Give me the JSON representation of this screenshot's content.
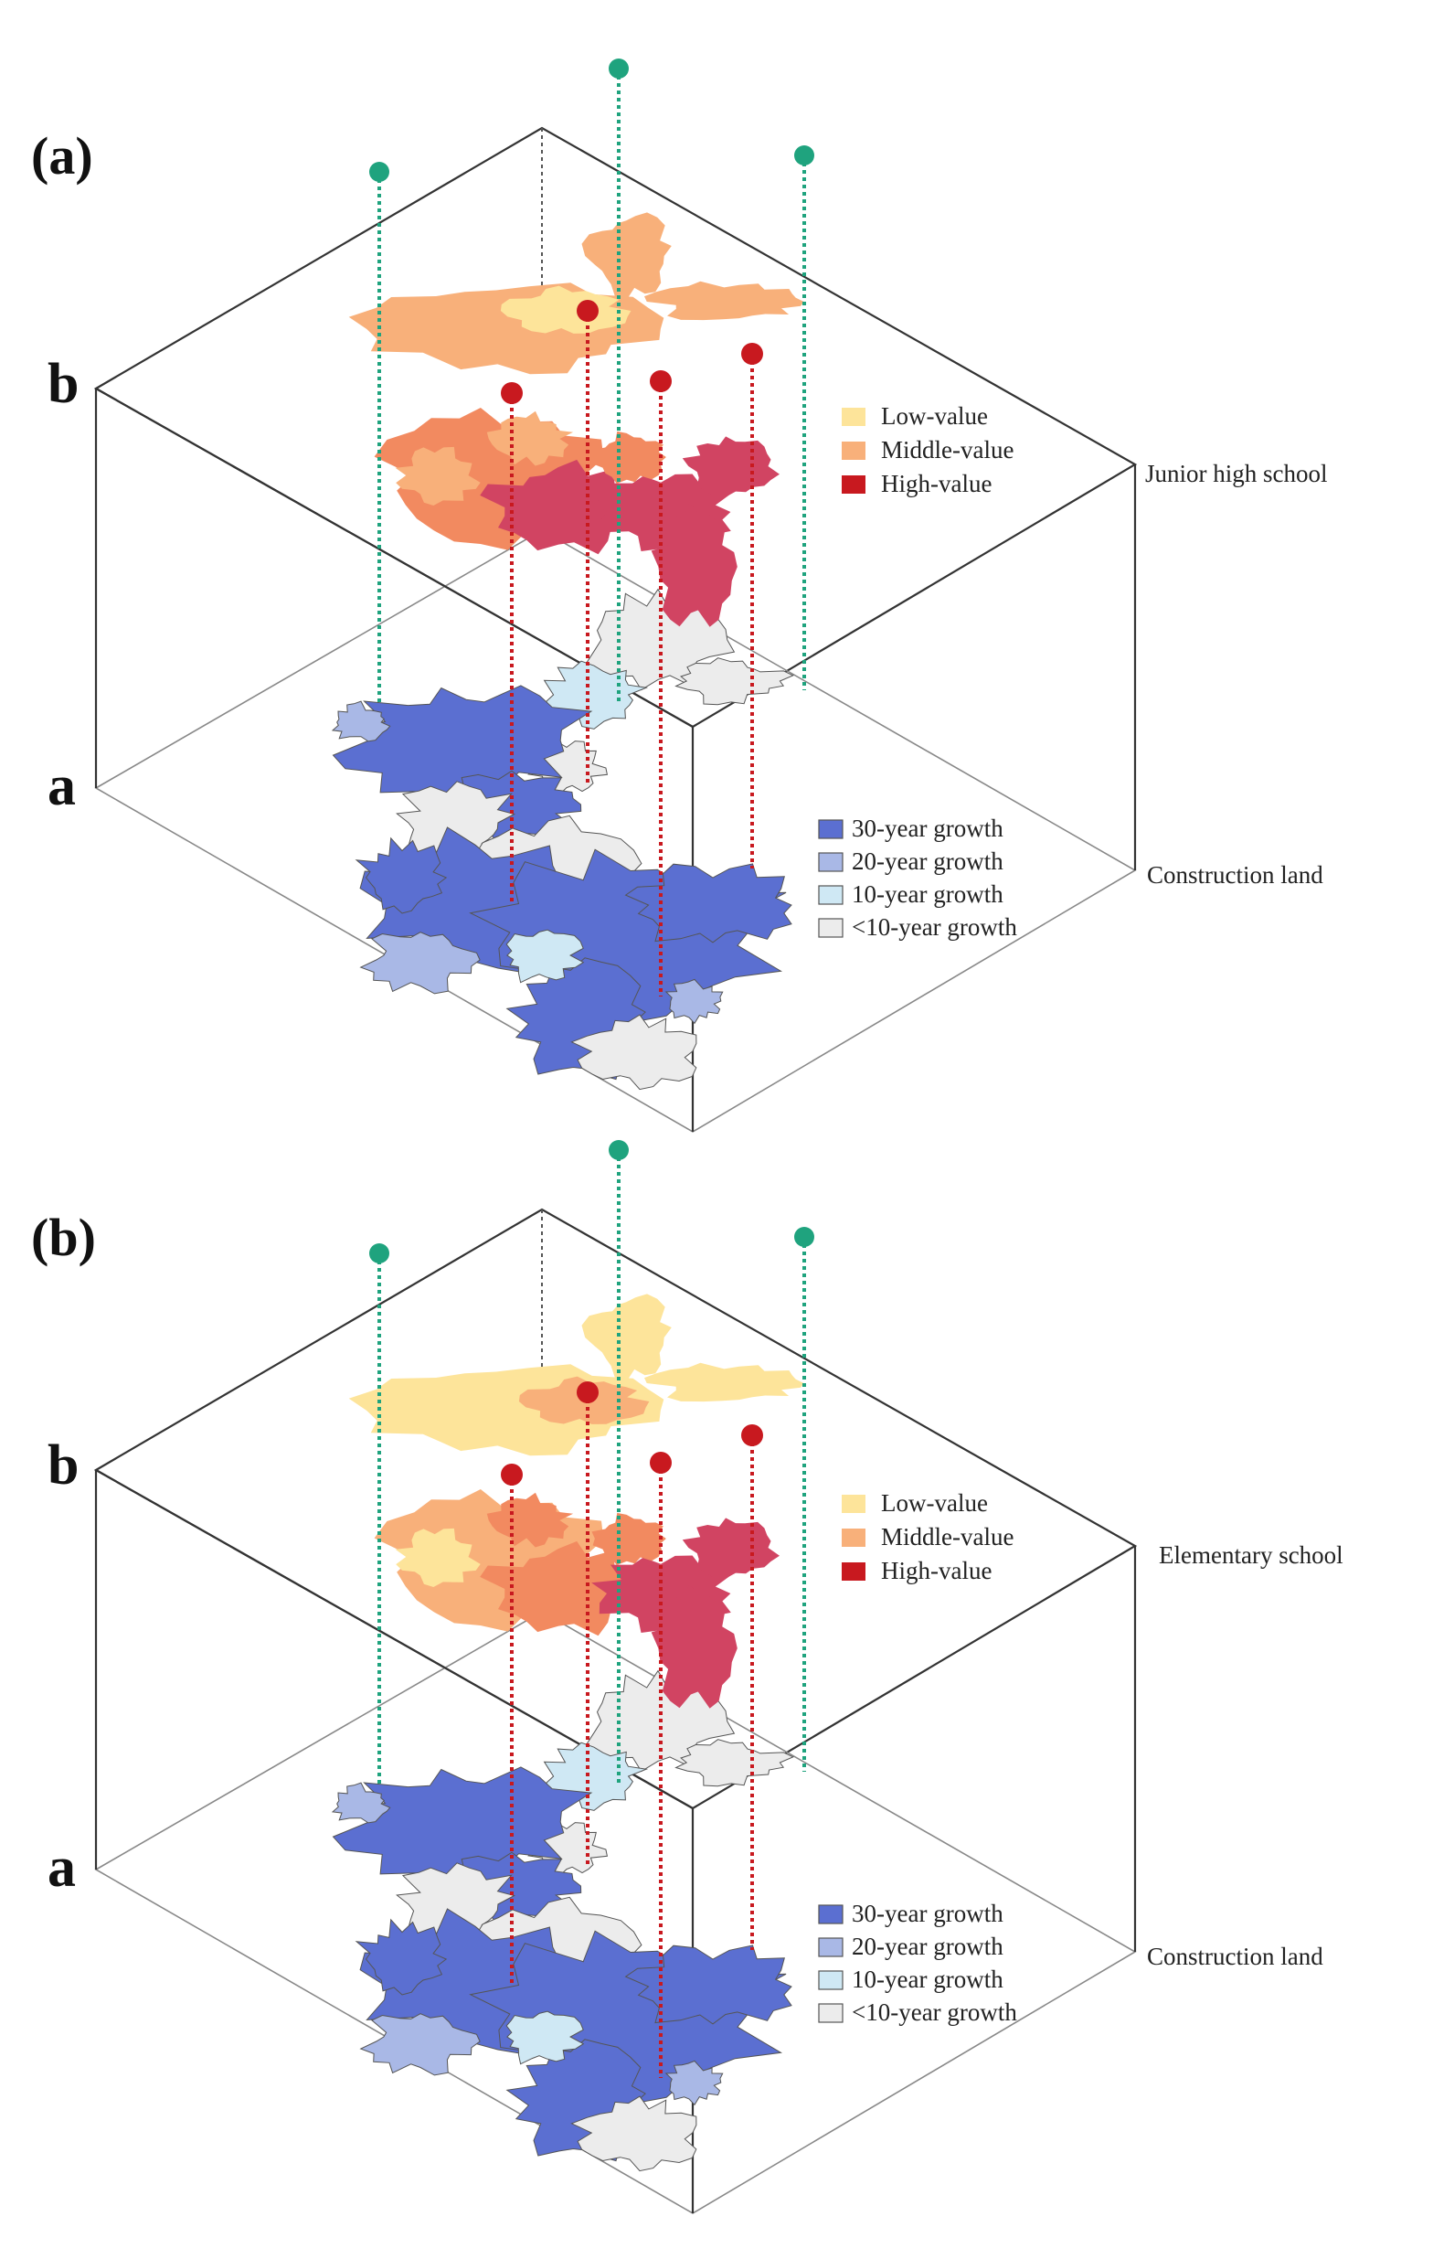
{
  "panels": [
    {
      "id": "a",
      "label": "(a)",
      "layer_top": "b",
      "layer_bottom": "a",
      "top_name": "Junior high school",
      "bottom_name": "Construction land"
    },
    {
      "id": "b",
      "label": "(b)",
      "layer_top": "b",
      "layer_bottom": "a",
      "top_name": "Elementary school",
      "bottom_name": "Construction land"
    }
  ],
  "legend_value": [
    {
      "label": "Low-value",
      "color": "#fde49a"
    },
    {
      "label": "Middle-value",
      "color": "#f8b07a"
    },
    {
      "label": "High-value",
      "color": "#c8191f"
    }
  ],
  "legend_growth": [
    {
      "label": "30-year growth",
      "color": "#5b6fd1"
    },
    {
      "label": "20-year growth",
      "color": "#a9b8e6"
    },
    {
      "label": "10-year growth",
      "color": "#cfe8f4"
    },
    {
      "label": "<10-year growth",
      "color": "#ececec"
    }
  ],
  "colors": {
    "green_marker": "#1fa37e",
    "red_marker": "#c8191f",
    "value_low": "#fde49a",
    "value_mid": "#f8b07a",
    "value_mid_dark": "#f28a60",
    "value_high": "#d14462",
    "growth_30": "#5b6fd1",
    "growth_20": "#a9b8e6",
    "growth_10": "#cfe8f4",
    "growth_lt10": "#ececec"
  }
}
